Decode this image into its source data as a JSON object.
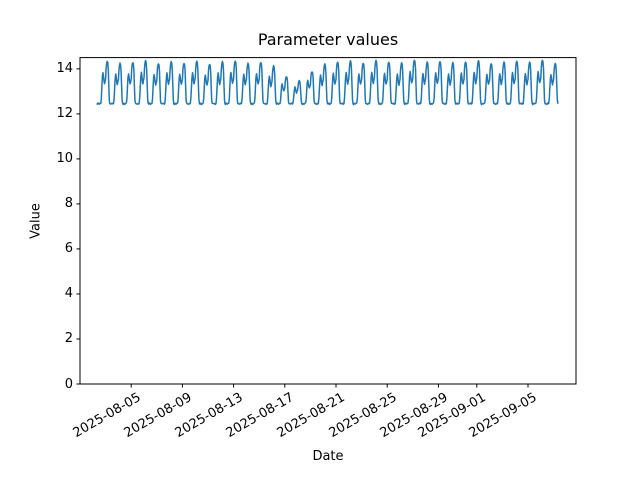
{
  "figure": {
    "background": "#ffffff",
    "title": "Parameter values",
    "xlabel": "Date",
    "ylabel": "Value"
  },
  "chart_data": {
    "type": "line",
    "title": "Parameter values",
    "xlabel": "Date",
    "ylabel": "Value",
    "grid": false,
    "legend": "none",
    "x_epoch": "2025-08-01",
    "xlim_days": [
      0,
      38.75
    ],
    "ylim": [
      0,
      14.5
    ],
    "y_ticks": [
      0,
      2,
      4,
      6,
      8,
      10,
      12,
      14
    ],
    "x_tick_days": [
      4,
      8,
      12,
      16,
      20,
      24,
      28,
      31,
      35
    ],
    "x_tick_labels": [
      "2025-08-05",
      "2025-08-09",
      "2025-08-13",
      "2025-08-17",
      "2025-08-21",
      "2025-08-25",
      "2025-08-29",
      "2025-09-01",
      "2025-09-05"
    ],
    "x_tick_rotation_deg": 30,
    "axis_color": "#000000",
    "series": [
      {
        "name": "parameter-values",
        "color": "#1f77b4",
        "line_width": 1.5,
        "sampling": "hourly",
        "start_hour": 32,
        "end_hour": 896,
        "step_hours": 1,
        "baseline": 12.45,
        "peak_hour": 3,
        "noise_amp": 0.03,
        "hourly_profile": [
          13.55,
          14.0,
          14.22,
          14.3,
          14.24,
          13.95,
          13.25,
          12.6,
          12.46,
          12.44,
          12.46,
          12.45,
          12.44,
          12.46,
          12.45,
          12.48,
          12.7,
          13.2,
          13.62,
          13.8,
          13.65,
          13.42,
          13.32,
          13.44
        ],
        "daily_amplitudes": [
          1.0,
          0.98,
          1.02,
          0.97,
          1.0,
          1.03,
          0.96,
          1.0,
          0.98,
          1.02,
          0.95,
          1.0,
          1.03,
          0.97,
          1.0,
          0.9,
          0.65,
          0.55,
          0.78,
          0.95,
          1.0,
          1.02,
          0.98,
          1.04,
          1.0,
          0.97,
          1.05,
          1.0,
          1.02,
          0.98,
          1.0,
          1.03,
          0.97,
          1.0,
          1.02,
          0.99,
          1.05,
          0.97,
          1.0
        ],
        "value_range_observed": [
          12.4,
          14.35
        ]
      }
    ]
  }
}
